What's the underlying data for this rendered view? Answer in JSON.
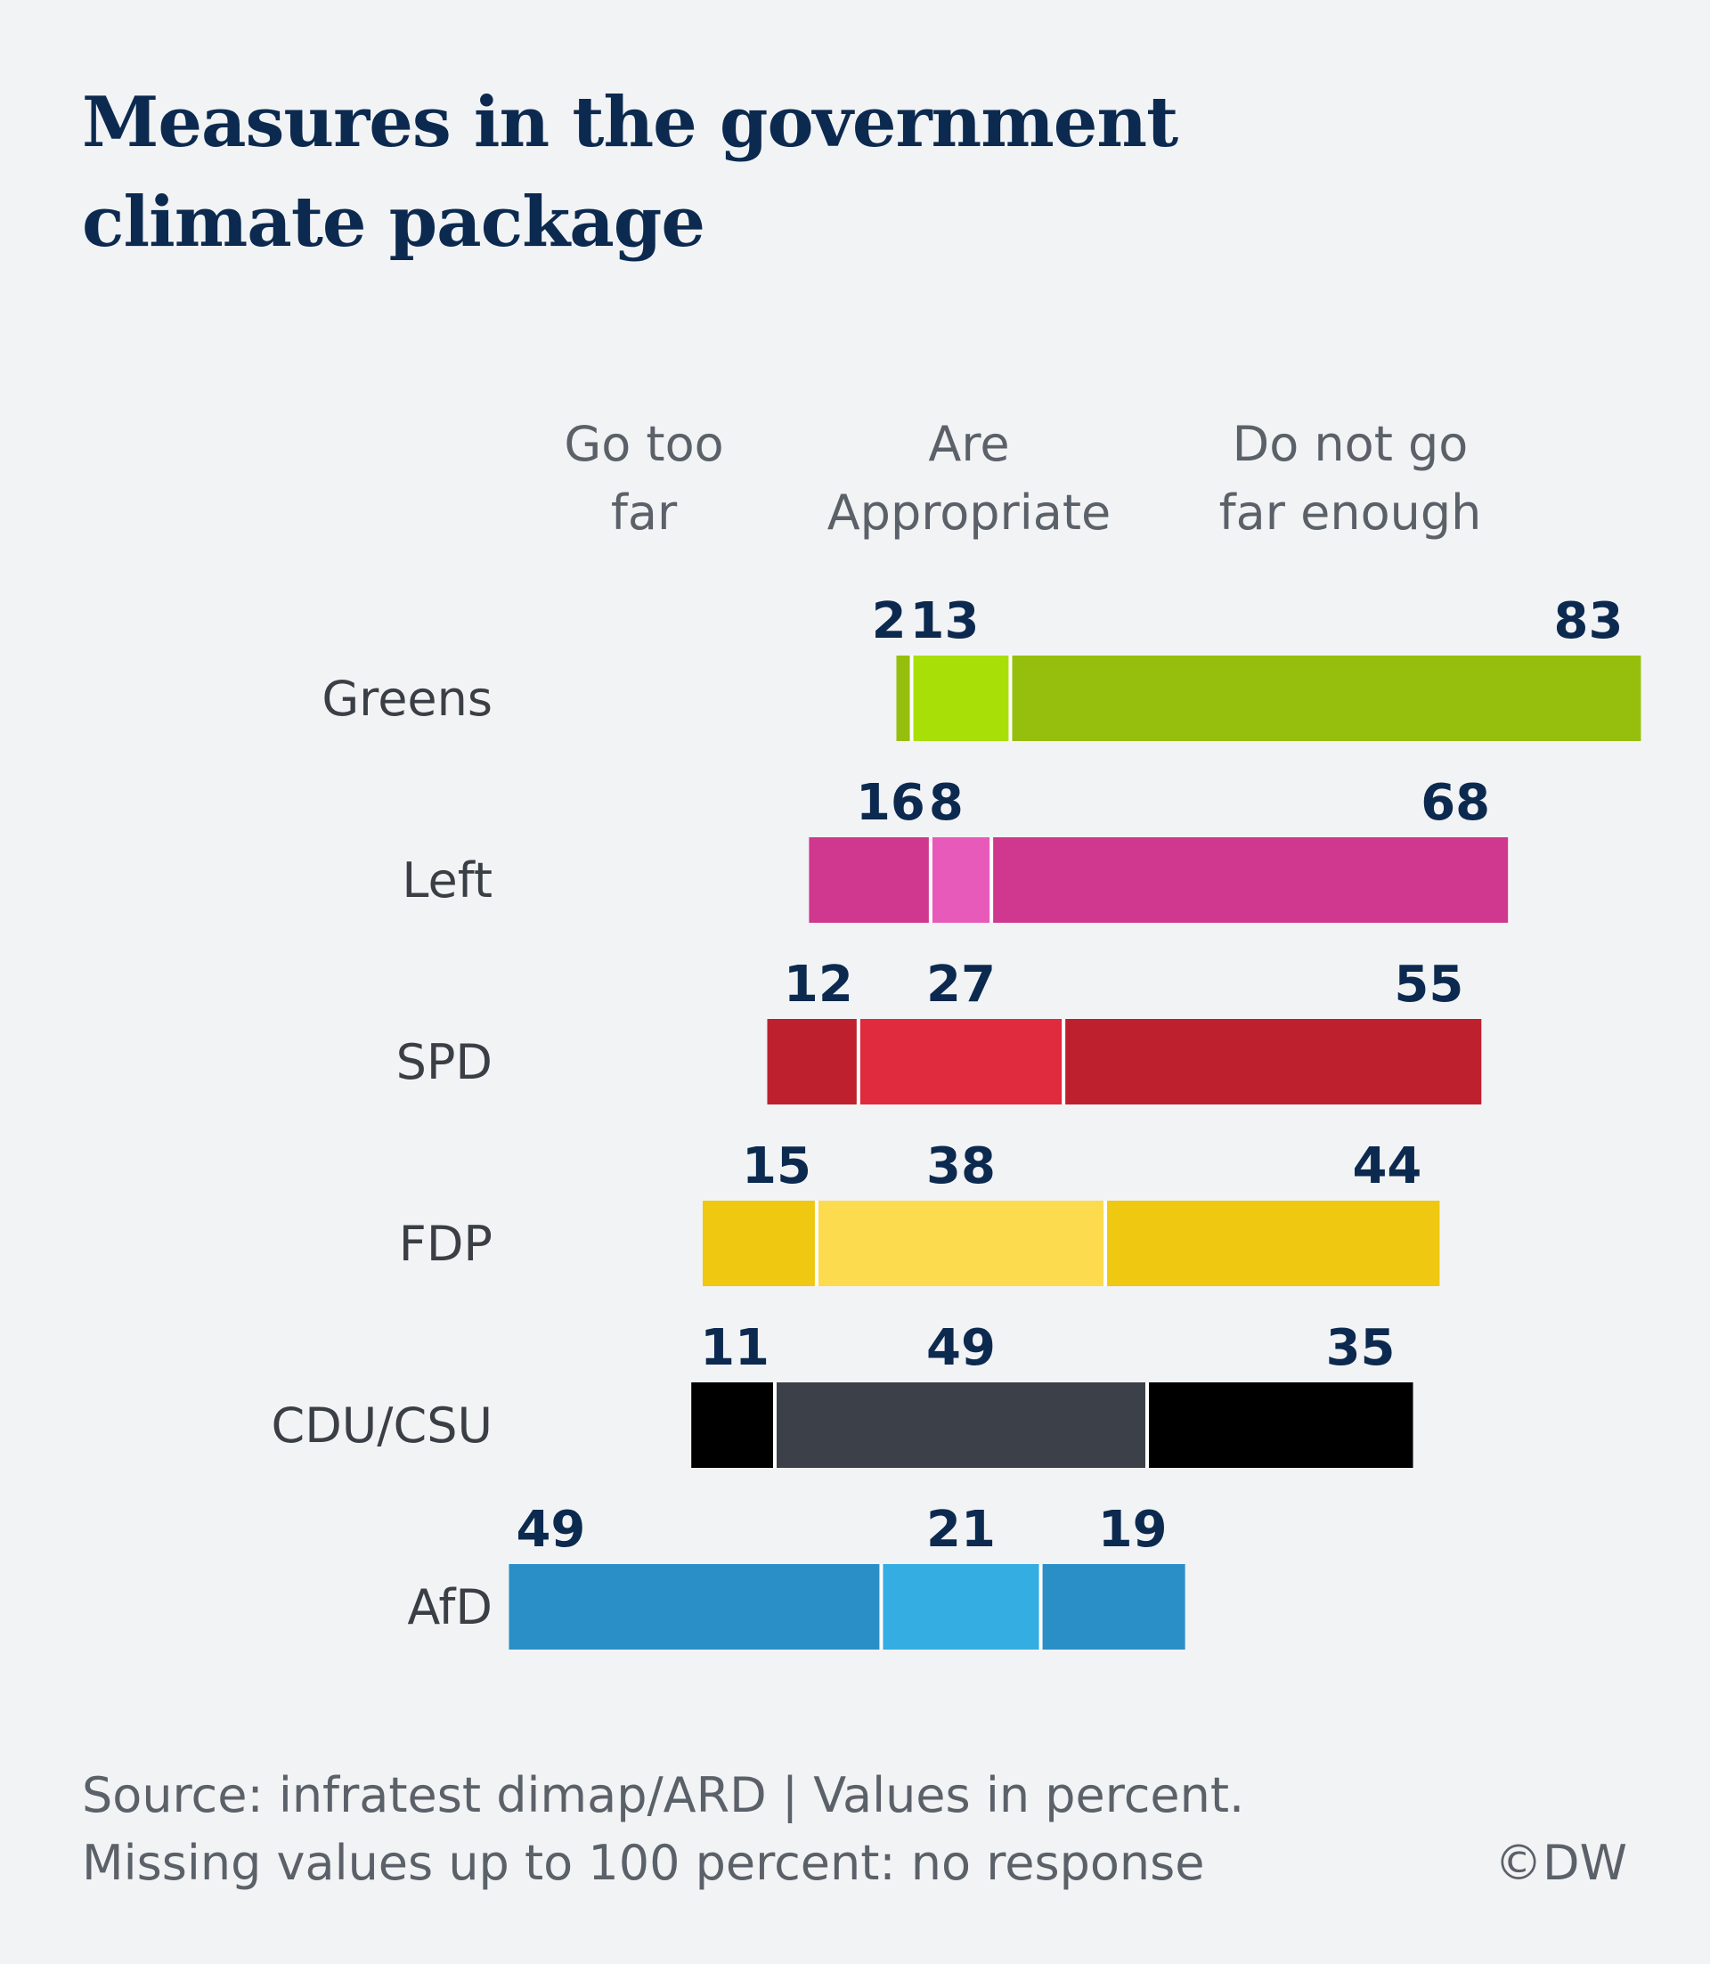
{
  "title_line1": "Measures in the government",
  "title_line2": "climate package",
  "footer": {
    "source": "Source: infratest dimap/ARD | Values in percent.",
    "note": "Missing values up to 100 percent: no response"
  },
  "credit": "©DW",
  "chart_data": {
    "type": "bar",
    "orientation": "horizontal",
    "stacked": true,
    "aligned_on": "Are Appropriate",
    "column_headers": [
      [
        "Go too",
        "far"
      ],
      [
        "Are",
        "Appropriate"
      ],
      [
        "Do not go",
        "far enough"
      ]
    ],
    "categories": [
      "Greens",
      "Left",
      "SPD",
      "FDP",
      "CDU/CSU",
      "AfD"
    ],
    "series": [
      {
        "name": "Go too far",
        "values": [
          2,
          16,
          12,
          15,
          11,
          49
        ]
      },
      {
        "name": "Are Appropriate",
        "values": [
          13,
          8,
          27,
          38,
          49,
          21
        ]
      },
      {
        "name": "Do not go far enough",
        "values": [
          83,
          68,
          55,
          44,
          35,
          19
        ]
      }
    ],
    "colors": {
      "Greens": [
        "#96bf0d",
        "#a8df07",
        "#96bf0d"
      ],
      "Left": [
        "#cf388e",
        "#e85ab9",
        "#cf388e"
      ],
      "SPD": [
        "#be202e",
        "#e02a3d",
        "#be202e"
      ],
      "FDP": [
        "#eec811",
        "#fcdb4f",
        "#eec811"
      ],
      "CDU/CSU": [
        "#000000",
        "#3b4049",
        "#000000"
      ],
      "AfD": [
        "#2a8fc7",
        "#34ade2",
        "#2a8fc7"
      ]
    },
    "value_label_color": "#0c2a4f",
    "category_label_color": "#3a3f45",
    "header_color": "#5b6168"
  }
}
